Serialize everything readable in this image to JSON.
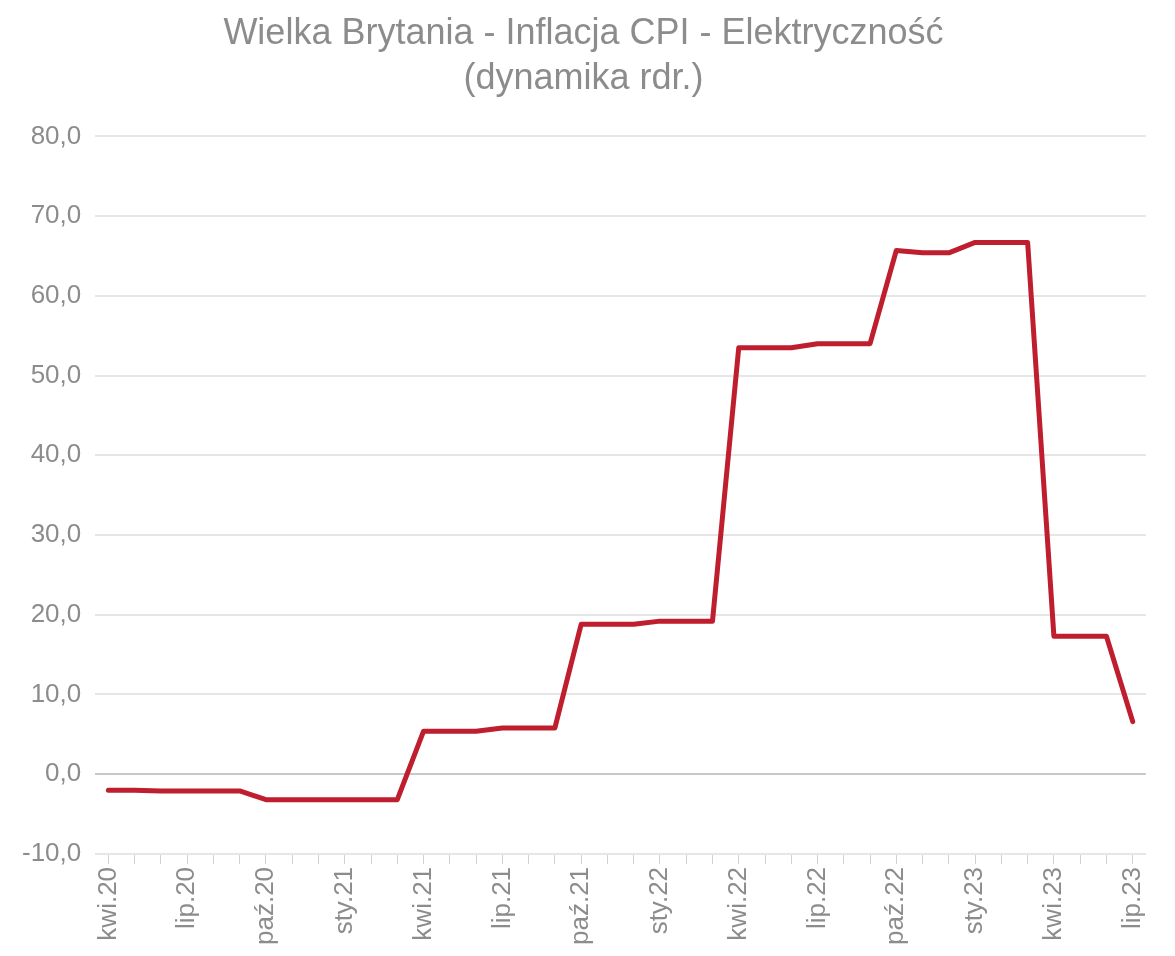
{
  "chart_data": {
    "type": "line",
    "title": "Wielka Brytania - Inflacja CPI - Elektryczność",
    "subtitle": "(dynamika rdr.)",
    "categories": [
      "kwi.20",
      null,
      null,
      "lip.20",
      null,
      null,
      "paź.20",
      null,
      null,
      "sty.21",
      null,
      null,
      "kwi.21",
      null,
      null,
      "lip.21",
      null,
      null,
      "paź.21",
      null,
      null,
      "sty.22",
      null,
      null,
      "kwi.22",
      null,
      null,
      "lip.22",
      null,
      null,
      "paź.22",
      null,
      null,
      "sty.23",
      null,
      null,
      "kwi.23",
      null,
      null,
      "lip.23"
    ],
    "series": [
      {
        "color": "#be1e2d",
        "values": [
          -2.0,
          -2.0,
          -2.1,
          -2.1,
          -2.1,
          -2.1,
          -3.2,
          -3.2,
          -3.2,
          -3.2,
          -3.2,
          -3.2,
          5.4,
          5.4,
          5.4,
          5.8,
          5.8,
          5.8,
          18.8,
          18.8,
          18.8,
          19.2,
          19.2,
          19.2,
          53.5,
          53.5,
          53.5,
          54.0,
          54.0,
          54.0,
          65.7,
          65.4,
          65.4,
          66.7,
          66.7,
          66.7,
          17.3,
          17.3,
          17.3,
          6.6
        ]
      }
    ],
    "ylim": [
      -10,
      80
    ],
    "yticks": [
      {
        "value": -10,
        "label": "-10,0"
      },
      {
        "value": 0,
        "label": "0,0"
      },
      {
        "value": 10,
        "label": "10,0"
      },
      {
        "value": 20,
        "label": "20,0"
      },
      {
        "value": 30,
        "label": "30,0"
      },
      {
        "value": 40,
        "label": "40,0"
      },
      {
        "value": 50,
        "label": "50,0"
      },
      {
        "value": 60,
        "label": "60,0"
      },
      {
        "value": 70,
        "label": "70,0"
      },
      {
        "value": 80,
        "label": "80,0"
      }
    ],
    "grid": "y",
    "legend": false,
    "marker": "none",
    "line_style": "solid"
  }
}
